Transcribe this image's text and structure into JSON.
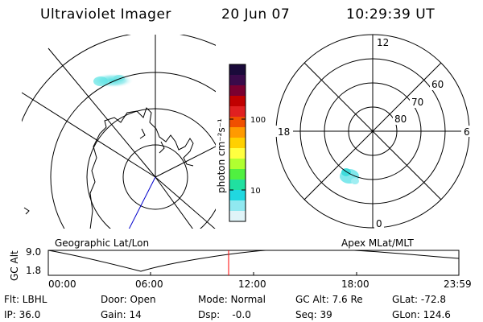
{
  "header": {
    "title": "Ultraviolet Imager",
    "date": "20 Jun 07",
    "time": "10:29:39 UT"
  },
  "left_panel": {
    "label": "Geographic Lat/Lon"
  },
  "right_panel": {
    "label": "Apex MLat/MLT",
    "mlt_labels": [
      "12",
      "6",
      "0",
      "18"
    ],
    "lat_labels": [
      "60",
      "70",
      "80"
    ]
  },
  "colorbar": {
    "unit_label": "photon cm⁻²s⁻¹",
    "ticks": [
      "100",
      "10"
    ],
    "colors": [
      "#1a0a3a",
      "#3a0a4a",
      "#7a0030",
      "#c00000",
      "#e02020",
      "#f05000",
      "#ff9a00",
      "#ffd000",
      "#ffff40",
      "#b0ff30",
      "#50f040",
      "#20e0a0",
      "#20d8e0",
      "#90e8f0",
      "#e0f4f8"
    ]
  },
  "timeline": {
    "ylabel": "GC Alt",
    "y_ticks": [
      "9.0",
      "1.8"
    ],
    "x_ticks": [
      "00:00",
      "06:00",
      "12:00",
      "18:00",
      "23:59"
    ]
  },
  "status": {
    "row1": [
      "Flt: LBHL",
      "Door: Open",
      "Mode: Normal",
      "GC Alt: 7.6 Re",
      "GLat: -72.8"
    ],
    "row2": [
      "IP: 36.0",
      "Gain: 14",
      "Dsp:    -0.0",
      "Seq: 39",
      "GLon: 124.6"
    ]
  }
}
